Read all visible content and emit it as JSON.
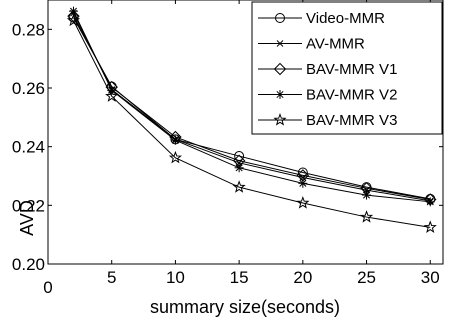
{
  "chart_data": {
    "type": "line",
    "title": "",
    "xlabel": "summary size(seconds)",
    "ylabel": "AVD",
    "xlim": [
      0,
      31
    ],
    "ylim": [
      0.2,
      0.29
    ],
    "xticks": [
      0,
      5,
      10,
      15,
      20,
      25,
      30
    ],
    "yticks": [
      0.2,
      0.22,
      0.24,
      0.26,
      0.28
    ],
    "x_tick_labels": [
      "0",
      "5",
      "10",
      "15",
      "20",
      "25",
      "30"
    ],
    "y_tick_labels": [
      "0.20",
      "0.22",
      "0.24",
      "0.26",
      "0.28"
    ],
    "grid": false,
    "legend_position": "top-right",
    "x": [
      2,
      5,
      10,
      15,
      20,
      25,
      30
    ],
    "series": [
      {
        "name": "Video-MMR",
        "marker": "circle",
        "values": [
          0.284,
          0.2605,
          0.2425,
          0.2368,
          0.2312,
          0.2262,
          0.2222
        ]
      },
      {
        "name": "AV-MMR",
        "marker": "x",
        "values": [
          0.2855,
          0.2595,
          0.2425,
          0.2345,
          0.2295,
          0.2252,
          0.2215
        ]
      },
      {
        "name": "BAV-MMR V1",
        "marker": "diamond",
        "values": [
          0.2845,
          0.2603,
          0.2433,
          0.2352,
          0.2302,
          0.2258,
          0.222
        ]
      },
      {
        "name": "BAV-MMR V2",
        "marker": "asterisk",
        "values": [
          0.2862,
          0.2592,
          0.2422,
          0.2328,
          0.2275,
          0.2235,
          0.2212
        ]
      },
      {
        "name": "BAV-MMR V3",
        "marker": "star",
        "values": [
          0.283,
          0.2572,
          0.2362,
          0.2262,
          0.2208,
          0.216,
          0.2125
        ]
      }
    ]
  }
}
